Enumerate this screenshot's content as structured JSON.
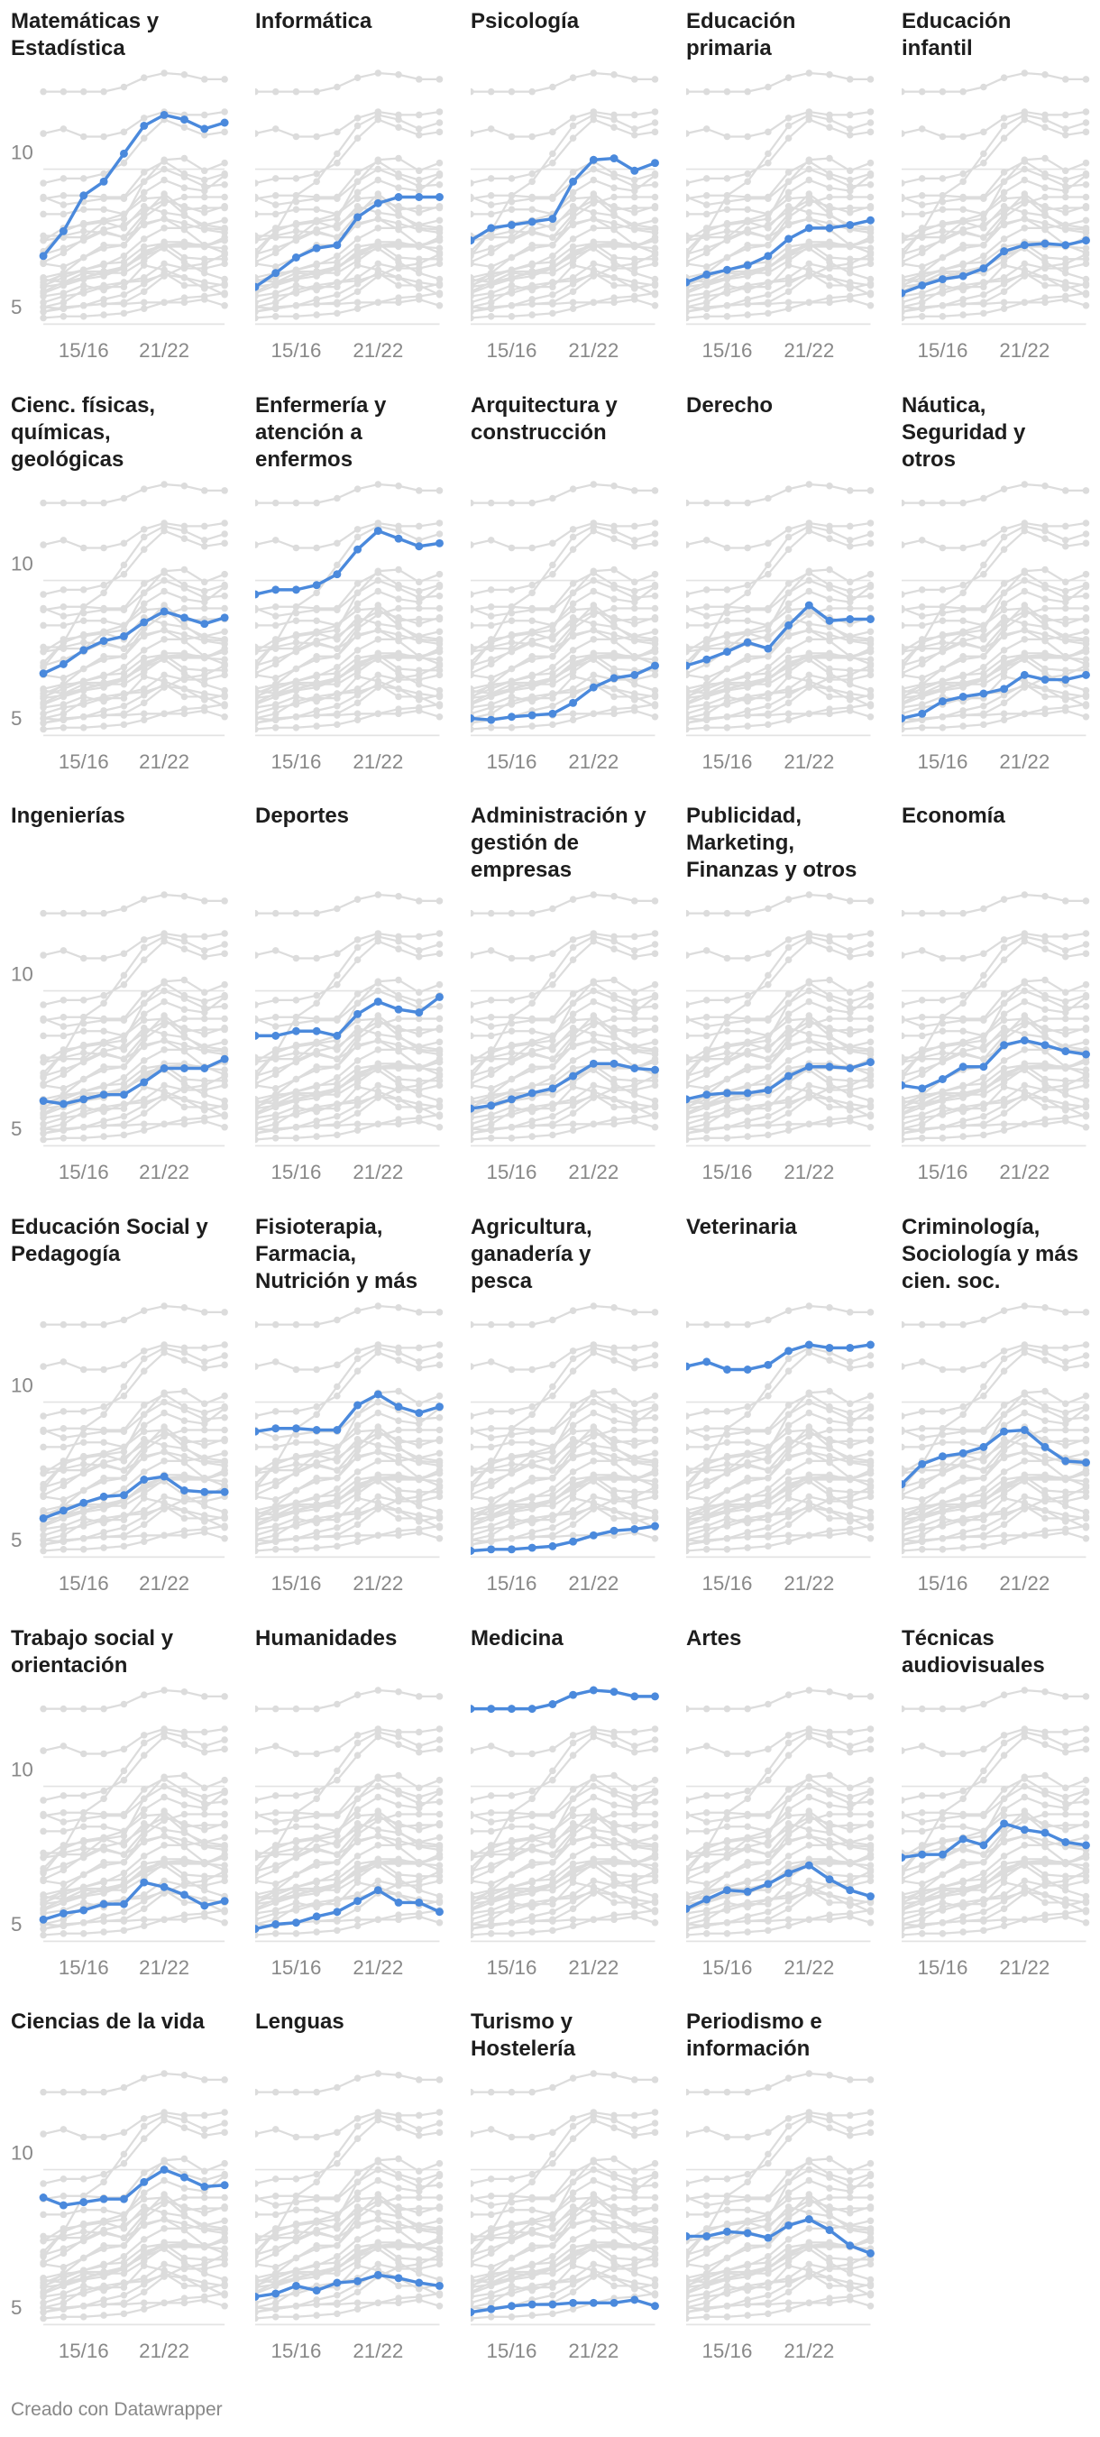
{
  "chart_data": {
    "type": "line",
    "categories": [
      null,
      null,
      "15/16",
      null,
      null,
      null,
      "21/22",
      null,
      null,
      null
    ],
    "ylim": [
      4.6,
      13.3
    ],
    "yticks": [
      5,
      10
    ],
    "grid": true,
    "context_color": "#dcdcdc",
    "credit": "Creado con Datawrapper",
    "series": [
      {
        "name": "Matemáticas y\nEstadística",
        "color": "#4a89dc",
        "values": [
          7.2,
          8.0,
          9.15,
          9.6,
          10.5,
          11.4,
          11.75,
          11.6,
          11.3,
          11.5
        ]
      },
      {
        "name": "Informática",
        "color": "#4a89dc",
        "values": [
          6.2,
          6.65,
          7.15,
          7.45,
          7.55,
          8.45,
          8.9,
          9.1,
          9.1,
          9.1
        ]
      },
      {
        "name": "Psicología",
        "color": "#4a89dc",
        "values": [
          7.7,
          8.1,
          8.2,
          8.3,
          8.4,
          9.6,
          10.3,
          10.35,
          9.95,
          10.2
        ]
      },
      {
        "name": "Educación\nprimaria",
        "color": "#4a89dc",
        "values": [
          6.35,
          6.6,
          6.75,
          6.9,
          7.2,
          7.75,
          8.1,
          8.1,
          8.2,
          8.35
        ]
      },
      {
        "name": "Educación\ninfantil",
        "color": "#4a89dc",
        "values": [
          6.0,
          6.25,
          6.45,
          6.55,
          6.8,
          7.35,
          7.55,
          7.6,
          7.55,
          7.7
        ]
      },
      {
        "name": "Cienc. físicas,\nquímicas,\ngeológicas",
        "color": "#4a89dc",
        "values": [
          7.0,
          7.3,
          7.75,
          8.05,
          8.2,
          8.65,
          9.0,
          8.8,
          8.6,
          8.8
        ]
      },
      {
        "name": "Enfermería y\natención a\nenfermos",
        "color": "#4a89dc",
        "values": [
          9.55,
          9.7,
          9.7,
          9.85,
          10.2,
          11.0,
          11.6,
          11.35,
          11.1,
          11.2
        ]
      },
      {
        "name": "Arquitectura y\nconstrucción",
        "color": "#4a89dc",
        "values": [
          5.55,
          5.5,
          5.6,
          5.65,
          5.7,
          6.05,
          6.55,
          6.85,
          6.95,
          7.25
        ]
      },
      {
        "name": "Derecho",
        "color": "#4a89dc",
        "values": [
          7.25,
          7.45,
          7.7,
          8.0,
          7.8,
          8.55,
          9.2,
          8.7,
          8.75,
          8.75
        ]
      },
      {
        "name": "Náutica,\nSeguridad y\notros",
        "color": "#4a89dc",
        "values": [
          5.55,
          5.7,
          6.1,
          6.25,
          6.35,
          6.5,
          6.95,
          6.8,
          6.8,
          6.95
        ]
      },
      {
        "name": "Ingenierías",
        "color": "#4a89dc",
        "values": [
          6.45,
          6.35,
          6.5,
          6.65,
          6.65,
          7.05,
          7.5,
          7.5,
          7.5,
          7.8
        ]
      },
      {
        "name": "Deportes",
        "color": "#4a89dc",
        "values": [
          8.55,
          8.55,
          8.7,
          8.7,
          8.55,
          9.25,
          9.65,
          9.4,
          9.3,
          9.8
        ]
      },
      {
        "name": "Administración y\ngestión de\nempresas",
        "color": "#4a89dc",
        "values": [
          6.2,
          6.3,
          6.5,
          6.7,
          6.85,
          7.25,
          7.65,
          7.65,
          7.5,
          7.45
        ]
      },
      {
        "name": "Publicidad,\nMarketing,\nFinanzas y otros",
        "color": "#4a89dc",
        "values": [
          6.5,
          6.65,
          6.7,
          6.7,
          6.8,
          7.25,
          7.55,
          7.55,
          7.5,
          7.7
        ]
      },
      {
        "name": "Economía",
        "color": "#4a89dc",
        "values": [
          6.95,
          6.85,
          7.15,
          7.55,
          7.55,
          8.25,
          8.4,
          8.25,
          8.05,
          7.95
        ]
      },
      {
        "name": "Educación Social y\nPedagogía",
        "color": "#4a89dc",
        "values": [
          6.25,
          6.5,
          6.75,
          6.95,
          7.0,
          7.5,
          7.6,
          7.15,
          7.1,
          7.1
        ]
      },
      {
        "name": "Fisioterapia,\nFarmacia,\nNutrición y más",
        "color": "#4a89dc",
        "values": [
          9.05,
          9.15,
          9.15,
          9.1,
          9.1,
          9.9,
          10.25,
          9.85,
          9.65,
          9.85
        ]
      },
      {
        "name": "Agricultura,\nganadería y\npesca",
        "color": "#4a89dc",
        "values": [
          5.2,
          5.25,
          5.25,
          5.3,
          5.35,
          5.5,
          5.7,
          5.85,
          5.9,
          6.0
        ]
      },
      {
        "name": "Veterinaria",
        "color": "#4a89dc",
        "values": [
          11.15,
          11.3,
          11.05,
          11.05,
          11.2,
          11.65,
          11.85,
          11.75,
          11.75,
          11.85
        ]
      },
      {
        "name": "Criminología,\nSociología y más\ncien. soc.",
        "color": "#4a89dc",
        "values": [
          7.35,
          8.0,
          8.25,
          8.35,
          8.55,
          9.05,
          9.1,
          8.55,
          8.1,
          8.05
        ]
      },
      {
        "name": "Trabajo social y\norientación",
        "color": "#4a89dc",
        "values": [
          5.7,
          5.9,
          6.0,
          6.2,
          6.2,
          6.9,
          6.75,
          6.5,
          6.15,
          6.3
        ]
      },
      {
        "name": "Humanidades",
        "color": "#4a89dc",
        "values": [
          5.4,
          5.55,
          5.6,
          5.8,
          5.95,
          6.3,
          6.65,
          6.25,
          6.25,
          5.95
        ]
      },
      {
        "name": "Medicina",
        "color": "#4a89dc",
        "values": [
          12.5,
          12.5,
          12.5,
          12.5,
          12.65,
          12.95,
          13.1,
          13.05,
          12.9,
          12.9
        ]
      },
      {
        "name": "Artes",
        "color": "#4a89dc",
        "values": [
          6.05,
          6.35,
          6.65,
          6.6,
          6.85,
          7.2,
          7.45,
          7.0,
          6.65,
          6.45
        ]
      },
      {
        "name": "Técnicas\naudiovisuales",
        "color": "#4a89dc",
        "values": [
          7.7,
          7.8,
          7.8,
          8.3,
          8.1,
          8.8,
          8.6,
          8.5,
          8.2,
          8.1
        ]
      },
      {
        "name": "Ciencias de la vida",
        "color": "#4a89dc",
        "values": [
          9.1,
          8.85,
          8.95,
          9.05,
          9.05,
          9.6,
          10.0,
          9.75,
          9.45,
          9.5
        ]
      },
      {
        "name": "Lenguas",
        "color": "#4a89dc",
        "values": [
          5.9,
          6.0,
          6.25,
          6.1,
          6.35,
          6.4,
          6.6,
          6.5,
          6.35,
          6.25
        ]
      },
      {
        "name": "Turismo y\nHostelería",
        "color": "#4a89dc",
        "values": [
          5.4,
          5.5,
          5.6,
          5.65,
          5.65,
          5.7,
          5.7,
          5.7,
          5.8,
          5.6
        ]
      },
      {
        "name": "Periodismo e\ninformación",
        "color": "#4a89dc",
        "values": [
          7.85,
          7.85,
          8.0,
          7.95,
          7.8,
          8.2,
          8.4,
          8.05,
          7.55,
          7.3
        ]
      }
    ]
  }
}
